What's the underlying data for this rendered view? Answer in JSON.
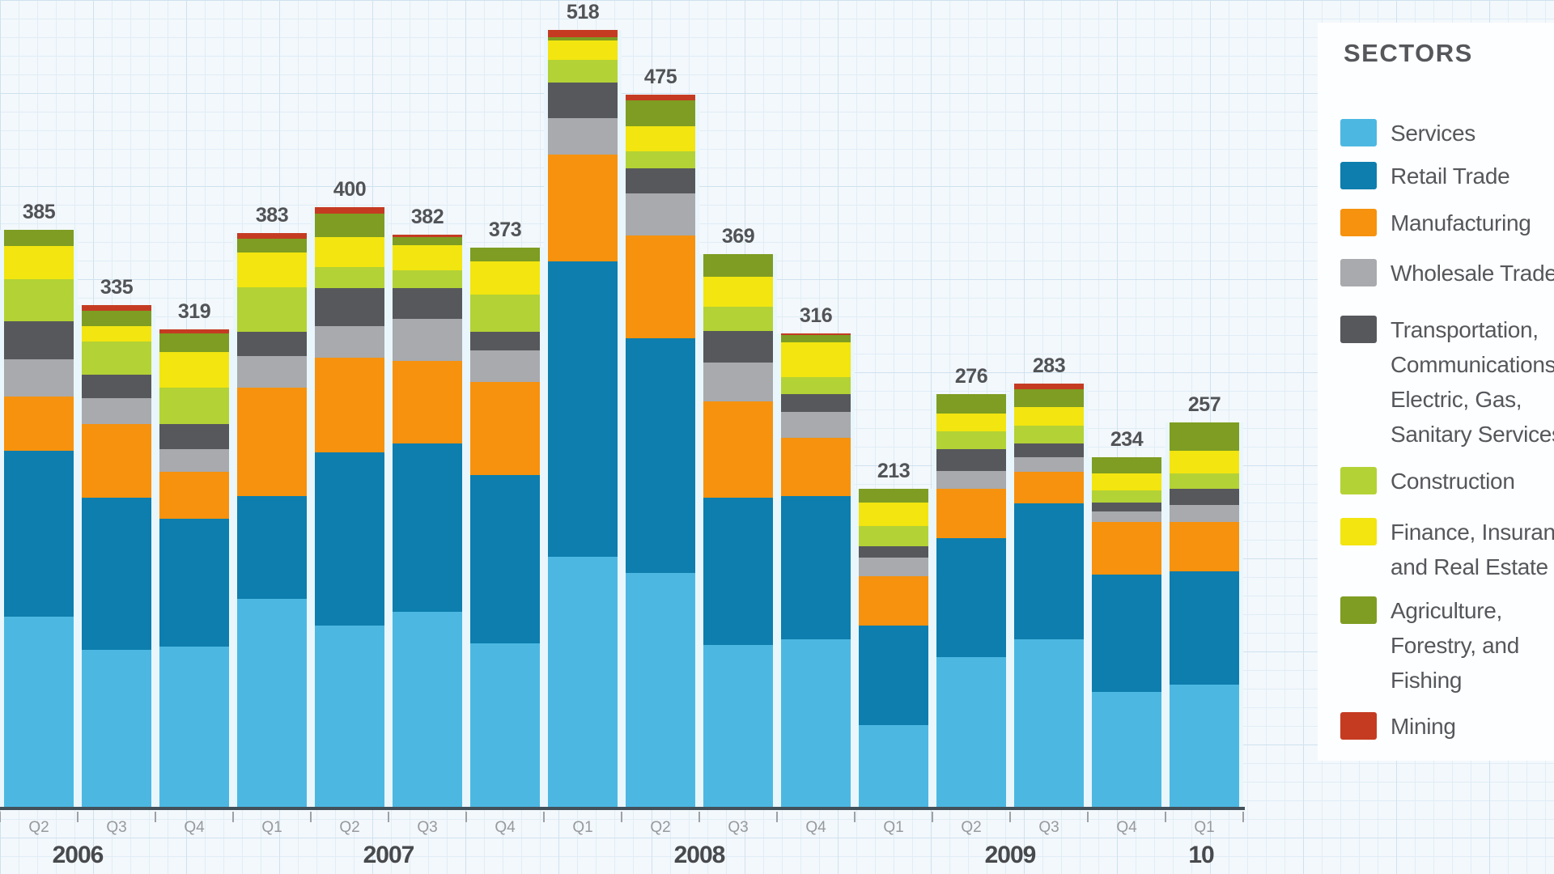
{
  "legend": {
    "title": "SECTORS",
    "items": [
      {
        "name": "Services",
        "color": "#4cb8e2",
        "lines": [
          "Services"
        ]
      },
      {
        "name": "Retail Trade",
        "color": "#0d7ead",
        "lines": [
          "Retail Trade"
        ]
      },
      {
        "name": "Manufacturing",
        "color": "#f6920e",
        "lines": [
          "Manufacturing"
        ]
      },
      {
        "name": "Wholesale Trade",
        "color": "#a8aaad",
        "lines": [
          "Wholesale Trade"
        ]
      },
      {
        "name": "Transportation, Communications, Electric, Gas, Sanitary Services",
        "color": "#57585c",
        "lines": [
          "Transportation,",
          "Communications,",
          "Electric, Gas,",
          "Sanitary Services"
        ]
      },
      {
        "name": "Construction",
        "color": "#b3d235",
        "lines": [
          "Construction"
        ]
      },
      {
        "name": "Finance, Insurance, and Real Estate",
        "color": "#f2e510",
        "lines": [
          "Finance, Insurance,",
          "and Real Estate"
        ]
      },
      {
        "name": "Agriculture, Forestry, and Fishing",
        "color": "#7e9d22",
        "lines": [
          "Agriculture,",
          "Forestry, and",
          "Fishing"
        ]
      },
      {
        "name": "Mining",
        "color": "#c53b22",
        "lines": [
          "Mining"
        ]
      }
    ]
  },
  "x_axis": {
    "quarters": [
      "Q2",
      "Q3",
      "Q4",
      "Q1",
      "Q2",
      "Q3",
      "Q4",
      "Q1",
      "Q2",
      "Q3",
      "Q4",
      "Q1",
      "Q2",
      "Q3",
      "Q4",
      "Q1"
    ],
    "years": [
      "2006",
      "2007",
      "2008",
      "2009",
      "10"
    ]
  },
  "chart_data": {
    "type": "bar",
    "stacked": true,
    "legend_position": "right",
    "grid": "graph-paper background",
    "categories": [
      "Q2 2006",
      "Q3 2006",
      "Q4 2006",
      "Q1 2007",
      "Q2 2007",
      "Q3 2007",
      "Q4 2007",
      "Q1 2008",
      "Q2 2008",
      "Q3 2008",
      "Q4 2008",
      "Q1 2009",
      "Q2 2009",
      "Q3 2009",
      "Q4 2009",
      "Q1 2010"
    ],
    "totals": [
      385,
      335,
      319,
      383,
      400,
      382,
      373,
      518,
      475,
      369,
      316,
      213,
      276,
      283,
      234,
      257
    ],
    "series": [
      {
        "name": "Services",
        "color": "#4cb8e2",
        "values": [
          128,
          106,
          108,
          140,
          122,
          131,
          110,
          168,
          157,
          109,
          113,
          56,
          101,
          113,
          78,
          83
        ]
      },
      {
        "name": "Retail Trade",
        "color": "#0d7ead",
        "values": [
          110,
          101,
          85,
          68,
          115,
          112,
          112,
          196,
          156,
          98,
          95,
          66,
          79,
          90,
          78,
          75
        ]
      },
      {
        "name": "Manufacturing",
        "color": "#f6920e",
        "values": [
          36,
          49,
          31,
          72,
          63,
          55,
          62,
          71,
          68,
          64,
          39,
          33,
          33,
          21,
          35,
          33
        ]
      },
      {
        "name": "Wholesale Trade",
        "color": "#a8aaad",
        "values": [
          25,
          17,
          15,
          21,
          21,
          28,
          21,
          24,
          28,
          26,
          17,
          12,
          12,
          10,
          7,
          11
        ]
      },
      {
        "name": "Transportation, Communications, Electric, Gas, Sanitary Services",
        "color": "#57585c",
        "values": [
          25,
          16,
          17,
          16,
          25,
          20,
          12,
          24,
          17,
          21,
          12,
          8,
          14,
          9,
          6,
          11
        ]
      },
      {
        "name": "Construction",
        "color": "#b3d235",
        "values": [
          28,
          22,
          24,
          30,
          14,
          12,
          25,
          15,
          11,
          16,
          11,
          13,
          12,
          12,
          8,
          10
        ]
      },
      {
        "name": "Finance, Insurance, and Real Estate",
        "color": "#f2e510",
        "values": [
          22,
          10,
          24,
          23,
          20,
          17,
          22,
          13,
          17,
          20,
          23,
          16,
          12,
          12,
          11,
          15
        ]
      },
      {
        "name": "Agriculture, Forestry, and Fishing",
        "color": "#7e9d22",
        "values": [
          11,
          10,
          12,
          9,
          16,
          5,
          9,
          2,
          17,
          15,
          5,
          9,
          13,
          12,
          11,
          19
        ]
      },
      {
        "name": "Mining",
        "color": "#c53b22",
        "values": [
          0,
          4,
          3,
          4,
          4,
          2,
          0,
          5,
          4,
          0,
          1,
          0,
          0,
          4,
          0,
          0
        ]
      }
    ]
  }
}
